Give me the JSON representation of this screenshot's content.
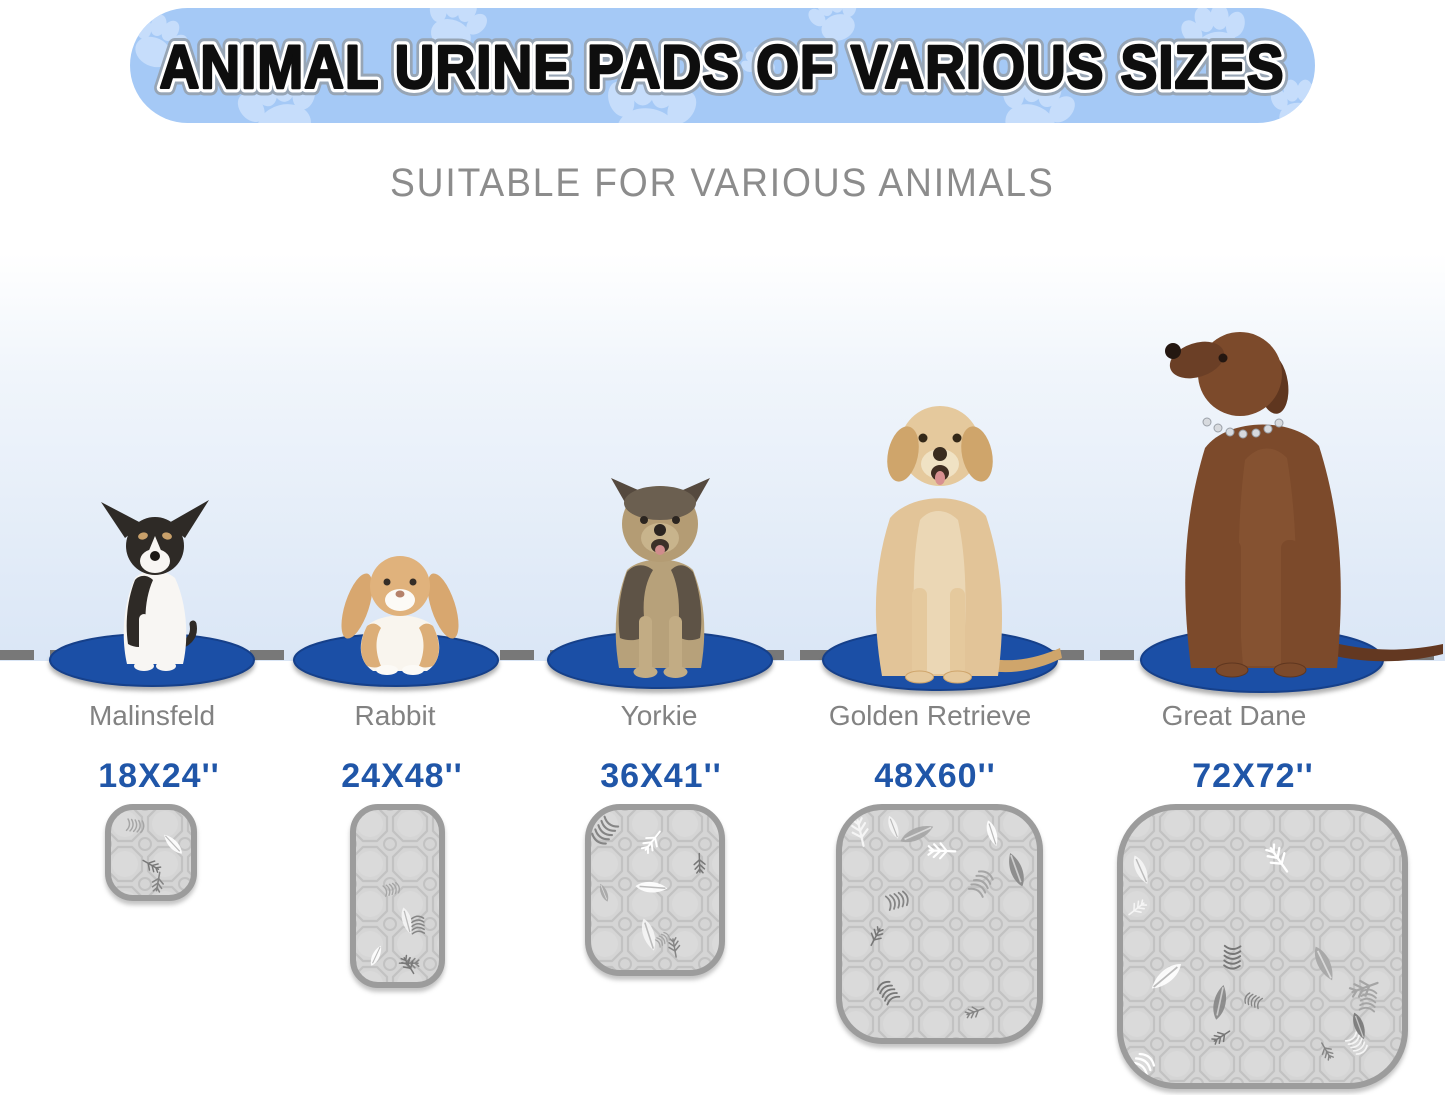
{
  "banner": {
    "title": "ANIMAL URINE PADS OF VARIOUS SIZES"
  },
  "subtitle": "SUITABLE FOR VARIOUS ANIMALS",
  "colors": {
    "banner_bg": "#a5c9f6",
    "banner_paw": "#c6ddfb",
    "title_fill": "#0e0e0e",
    "title_outline": "#ffffff",
    "title_halo": "#97a5b5",
    "subtitle_gray": "#8c8c8c",
    "label_gray": "#828282",
    "size_blue": "#2056a8",
    "oval_blue": "#1b4fa6",
    "dashed_line_gray": "#787878",
    "pad_fill": "#d5d5d5",
    "pad_cell_line": "#c2c2c2",
    "pad_border": "#9c9c9c"
  },
  "columns": [
    {
      "label": "Malinsfeld",
      "pad_size": "18X24''",
      "animal": "chihuahua"
    },
    {
      "label": "Rabbit",
      "pad_size": "24X48''",
      "animal": "rabbit"
    },
    {
      "label": "Yorkie",
      "pad_size": "36X41''",
      "animal": "yorkie"
    },
    {
      "label": "Golden Retrieve",
      "pad_size": "48X60''",
      "animal": "golden-retriever"
    },
    {
      "label": "Great Dane",
      "pad_size": "72X72''",
      "animal": "great-dane"
    }
  ]
}
